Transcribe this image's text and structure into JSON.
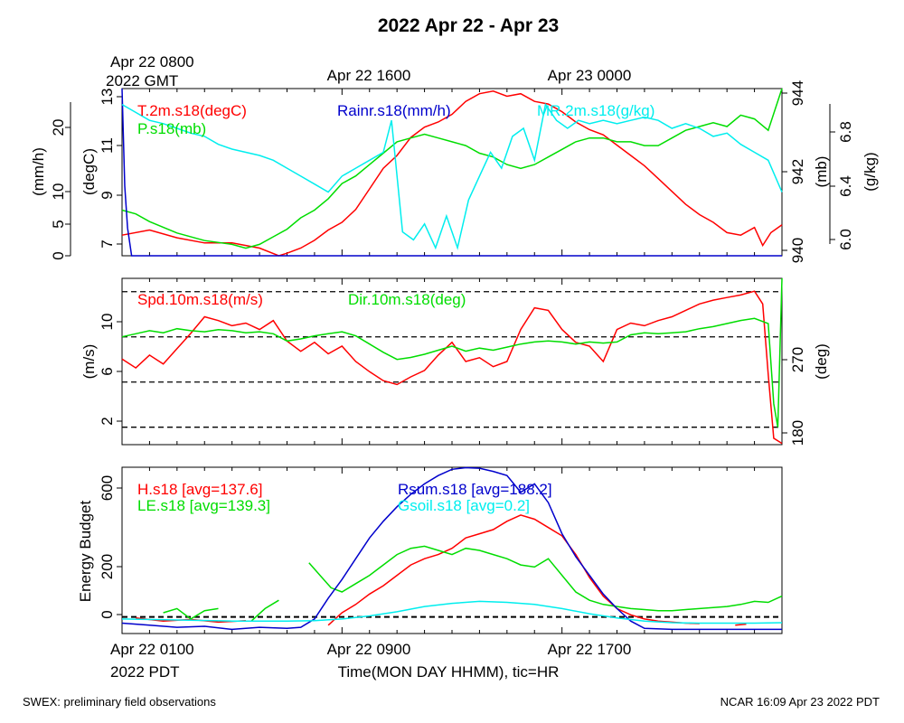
{
  "title": "2022 Apr 22 - Apr 23",
  "top_axis": {
    "first_label_line1": "Apr 22 0800",
    "first_label_line2": "2022 GMT",
    "labels": [
      "Apr 22 1600",
      "Apr 23 0000"
    ]
  },
  "bottom_axis": {
    "first_label_line1": "Apr 22 0100",
    "first_label_line2": "2022 PDT",
    "labels": [
      "Apr 22 0900",
      "Apr 22 1700"
    ],
    "xlabel": "Time(MON DAY HHMM), tic=HR"
  },
  "footer": {
    "left": "SWEX: preliminary field observations",
    "right": "NCAR 16:09 Apr 23 2022 PDT"
  },
  "colors": {
    "red": "#ff0000",
    "green": "#00dd00",
    "blue": "#0000cc",
    "cyan": "#00eeee"
  },
  "chart_data": [
    {
      "type": "line",
      "panel": "top",
      "x_unit": "hours after Apr 22 0100 PDT",
      "xlim": [
        0,
        24
      ],
      "axes": {
        "rain": {
          "label": "(mm/h)",
          "ticks": [
            "0",
            "5",
            "10",
            "20"
          ],
          "ylim": [
            0,
            24
          ]
        },
        "temp": {
          "label": "(degC)",
          "ticks": [
            "7",
            "9",
            "11",
            "13"
          ],
          "ylim": [
            6.6,
            13.1
          ]
        },
        "pres": {
          "label": "(mb)",
          "ticks": [
            "940",
            "942",
            "944"
          ],
          "ylim": [
            939.9,
            944.3
          ]
        },
        "mr": {
          "label": "(g/kg)",
          "ticks": [
            "6.0",
            "6.4",
            "6.8"
          ],
          "ylim": [
            5.95,
            7.0
          ]
        }
      },
      "series": [
        {
          "name": "T.2m.s18(degC)",
          "color": "#ff0000",
          "axis": "temp",
          "x": [
            0,
            1,
            2,
            3,
            4,
            5,
            5.7,
            6,
            6.5,
            7,
            7.5,
            8,
            8.5,
            9,
            9.5,
            10,
            10.5,
            11,
            11.5,
            12,
            12.5,
            13,
            13.5,
            14,
            14.5,
            15,
            15.5,
            16,
            16.5,
            17,
            17.5,
            18,
            18.5,
            19,
            19.5,
            20,
            20.5,
            21,
            21.5,
            22,
            22.5,
            23,
            23.3,
            23.6,
            24
          ],
          "y": [
            7.4,
            7.6,
            7.3,
            7.1,
            7.1,
            6.9,
            6.6,
            6.7,
            6.9,
            7.2,
            7.6,
            7.9,
            8.4,
            9.2,
            10,
            10.5,
            11.2,
            11.6,
            11.8,
            12.1,
            12.6,
            12.9,
            13.0,
            12.8,
            12.9,
            12.6,
            12.5,
            12.2,
            11.8,
            11.5,
            11.3,
            10.9,
            10.5,
            10.1,
            9.6,
            9.1,
            8.6,
            8.2,
            7.9,
            7.5,
            7.4,
            7.7,
            7.0,
            7.5,
            7.8
          ]
        },
        {
          "name": "P.s18(mb)",
          "color": "#00dd00",
          "axis": "pres",
          "x": [
            0,
            0.5,
            1,
            2,
            3,
            4,
            4.5,
            5,
            5.5,
            6,
            6.5,
            7,
            7.5,
            8,
            8.5,
            9,
            9.5,
            10,
            10.5,
            11,
            11.5,
            12,
            12.5,
            13,
            13.5,
            14,
            14.5,
            15,
            15.5,
            16,
            16.5,
            17,
            17.5,
            18,
            18.5,
            19,
            19.5,
            20,
            20.5,
            21,
            21.5,
            22,
            22.5,
            23,
            23.5,
            24
          ],
          "y": [
            941.1,
            941.0,
            940.8,
            940.5,
            940.3,
            940.2,
            940.1,
            940.2,
            940.4,
            940.6,
            940.9,
            941.1,
            941.4,
            941.8,
            942.0,
            942.3,
            942.6,
            942.9,
            943.0,
            943.1,
            943.0,
            942.9,
            942.8,
            942.6,
            942.5,
            942.3,
            942.2,
            942.3,
            942.5,
            942.7,
            942.9,
            943.0,
            943.0,
            942.9,
            942.9,
            942.8,
            942.8,
            943.0,
            943.2,
            943.3,
            943.4,
            943.3,
            943.6,
            943.5,
            943.2,
            944.3
          ]
        },
        {
          "name": "Rainr.s18(mm/h)",
          "color": "#0000cc",
          "axis": "rain",
          "x": [
            0,
            0.1,
            0.2,
            0.35,
            1,
            24
          ],
          "y": [
            24,
            10,
            4,
            0,
            0,
            0
          ]
        },
        {
          "name": "MR.2m.s18(g/kg)",
          "color": "#00eeee",
          "axis": "mr",
          "x": [
            0,
            0.5,
            1,
            1.5,
            2,
            2.5,
            3,
            3.5,
            4,
            4.5,
            5,
            5.5,
            6,
            6.5,
            7,
            7.5,
            8,
            8.5,
            9,
            9.5,
            9.8,
            10.2,
            10.6,
            11,
            11.4,
            11.8,
            12.2,
            12.6,
            13,
            13.4,
            13.8,
            14.2,
            14.6,
            15,
            15.4,
            15.8,
            16.2,
            16.6,
            17,
            17.5,
            18,
            18.5,
            19,
            19.5,
            20,
            20.5,
            21,
            21.5,
            22,
            22.5,
            23,
            23.5,
            24
          ],
          "y": [
            6.9,
            6.85,
            6.8,
            6.78,
            6.75,
            6.72,
            6.7,
            6.65,
            6.62,
            6.6,
            6.58,
            6.55,
            6.5,
            6.45,
            6.4,
            6.35,
            6.45,
            6.5,
            6.55,
            6.6,
            6.8,
            6.1,
            6.05,
            6.15,
            6.0,
            6.2,
            6.0,
            6.3,
            6.45,
            6.6,
            6.5,
            6.7,
            6.75,
            6.55,
            6.9,
            6.8,
            6.75,
            6.8,
            6.78,
            6.8,
            6.78,
            6.8,
            6.82,
            6.8,
            6.75,
            6.78,
            6.75,
            6.7,
            6.72,
            6.65,
            6.6,
            6.55,
            6.35
          ]
        }
      ]
    },
    {
      "type": "line",
      "panel": "middle",
      "x_unit": "hours after Apr 22 0100 PDT",
      "xlim": [
        0,
        24
      ],
      "axes": {
        "spd": {
          "label": "(m/s)",
          "ticks": [
            "2",
            "6",
            "10"
          ],
          "ylim": [
            0.5,
            13.5
          ]
        },
        "dir": {
          "label": "(deg)",
          "ticks": [
            "180",
            "270"
          ],
          "ylim": [
            170,
            332
          ]
        }
      },
      "reference_lines_dir_deg": [
        187,
        231,
        275,
        319
      ],
      "series": [
        {
          "name": "Spd.10m.s18(m/s)",
          "color": "#ff0000",
          "axis": "spd",
          "x": [
            0,
            0.5,
            1,
            1.5,
            2,
            2.5,
            3,
            3.5,
            4,
            4.5,
            5,
            5.5,
            6,
            6.5,
            7,
            7.5,
            8,
            8.5,
            9,
            9.5,
            10,
            10.5,
            11,
            11.5,
            12,
            12.5,
            13,
            13.5,
            14,
            14.5,
            15,
            15.5,
            16,
            16.5,
            17,
            17.5,
            18,
            18.5,
            19,
            19.5,
            20,
            20.5,
            21,
            21.5,
            22,
            22.5,
            23,
            23.3,
            23.5,
            23.7,
            24
          ],
          "y": [
            7.2,
            6.5,
            7.5,
            6.8,
            8.0,
            9.2,
            10.5,
            10.2,
            9.8,
            10.0,
            9.5,
            10.2,
            8.6,
            7.8,
            8.5,
            7.6,
            8.2,
            7.0,
            6.2,
            5.5,
            5.2,
            5.8,
            6.3,
            7.5,
            8.5,
            7.0,
            7.3,
            6.6,
            7.0,
            9.5,
            11.2,
            11.0,
            9.5,
            8.5,
            8.2,
            7.0,
            9.5,
            10.0,
            9.8,
            10.2,
            10.5,
            11.0,
            11.5,
            11.8,
            12.0,
            12.2,
            12.5,
            11.5,
            6.0,
            1.0,
            0.6
          ]
        },
        {
          "name": "Dir.10m.s18(deg)",
          "color": "#00dd00",
          "axis": "dir",
          "x": [
            0,
            0.5,
            1,
            1.5,
            2,
            2.5,
            3,
            3.5,
            4,
            4.5,
            5,
            5.5,
            6,
            6.5,
            7,
            7.5,
            8,
            8.5,
            9,
            9.5,
            10,
            10.5,
            11,
            11.5,
            12,
            12.5,
            13,
            13.5,
            14,
            14.5,
            15,
            15.5,
            16,
            16.5,
            17,
            17.5,
            18,
            18.5,
            19,
            19.5,
            20,
            20.5,
            21,
            21.5,
            22,
            22.5,
            23,
            23.5,
            23.7,
            23.85,
            24
          ],
          "y": [
            275,
            278,
            281,
            279,
            283,
            281,
            280,
            282,
            281,
            279,
            280,
            278,
            271,
            273,
            276,
            278,
            280,
            276,
            268,
            260,
            253,
            255,
            258,
            262,
            266,
            261,
            264,
            262,
            265,
            268,
            270,
            271,
            270,
            268,
            270,
            269,
            270,
            277,
            279,
            278,
            279,
            280,
            283,
            285,
            288,
            291,
            293,
            288,
            210,
            187,
            332
          ]
        }
      ]
    },
    {
      "type": "line",
      "panel": "bottom",
      "x_unit": "hours after Apr 22 0100 PDT",
      "xlim": [
        0,
        24
      ],
      "axes": {
        "energy": {
          "label": "Energy Budget",
          "ticks": [
            "0",
            "200",
            "600"
          ],
          "ylim": [
            -80,
            720
          ]
        }
      },
      "series": [
        {
          "name": "H.s18 [avg=137.6]",
          "color": "#ff0000",
          "axis": "energy",
          "segments": [
            {
              "x": [
                0.5,
                1.5,
                2.5,
                3.5,
                4.5
              ],
              "y": [
                -5,
                -20,
                -12,
                -25,
                -18
              ]
            },
            {
              "x": [
                7.5,
                8,
                8.5,
                9,
                9.5,
                10,
                10.5,
                11,
                11.5,
                12,
                12.5,
                13,
                13.5,
                14,
                14.5,
                15,
                15.5,
                16,
                16.5,
                17,
                17.5,
                18,
                18.5,
                19,
                19.5,
                20,
                20.5,
                21
              ],
              "y": [
                -40,
                20,
                60,
                110,
                150,
                200,
                250,
                280,
                300,
                330,
                380,
                400,
                420,
                460,
                490,
                470,
                430,
                390,
                300,
                190,
                100,
                40,
                10,
                -10,
                -20,
                -25,
                -30,
                -32
              ]
            },
            {
              "x": [
                22.3,
                22.7
              ],
              "y": [
                -40,
                -35
              ]
            }
          ]
        },
        {
          "name": "LE.s18 [avg=139.3]",
          "color": "#00dd00",
          "axis": "energy",
          "segments": [
            {
              "x": [
                1.5,
                2,
                2.5,
                3,
                3.5
              ],
              "y": [
                20,
                40,
                -10,
                30,
                40
              ]
            },
            {
              "x": [
                4.7,
                5.2,
                5.7
              ],
              "y": [
                -20,
                40,
                80
              ]
            },
            {
              "x": [
                6.8,
                7.2,
                7.6,
                8,
                8.5,
                9,
                9.5,
                10,
                10.5,
                11,
                11.5,
                12,
                12.5,
                13,
                13.5,
                14,
                14.5,
                15,
                15.5,
                16,
                16.5,
                17,
                17.5,
                18,
                18.5,
                19,
                19.5,
                20,
                20.5,
                21,
                21.5,
                22,
                22.5,
                23,
                23.5,
                24
              ],
              "y": [
                260,
                200,
                140,
                120,
                160,
                200,
                250,
                300,
                330,
                340,
                320,
                300,
                330,
                320,
                300,
                280,
                250,
                240,
                280,
                200,
                120,
                80,
                60,
                50,
                40,
                35,
                30,
                30,
                35,
                40,
                45,
                50,
                60,
                75,
                70,
                100
              ]
            }
          ]
        },
        {
          "name": "Rsum.s18 [avg=188.2]",
          "color": "#0000cc",
          "axis": "energy",
          "x": [
            0,
            1,
            2,
            3,
            4,
            5,
            6,
            6.5,
            7,
            7.5,
            8,
            8.5,
            9,
            9.5,
            10,
            10.5,
            11,
            11.5,
            12,
            12.5,
            13,
            13.5,
            14,
            14.5,
            15,
            15.5,
            16,
            16.5,
            17,
            17.5,
            18,
            18.5,
            19,
            20,
            21,
            22,
            23,
            24
          ],
          "y": [
            -30,
            -40,
            -50,
            -45,
            -60,
            -50,
            -55,
            -50,
            -10,
            90,
            180,
            280,
            380,
            460,
            530,
            590,
            640,
            680,
            710,
            718,
            715,
            700,
            680,
            600,
            640,
            550,
            400,
            290,
            200,
            110,
            40,
            -20,
            -55,
            -60,
            -60,
            -60,
            -60,
            -60
          ]
        },
        {
          "name": "Gsoil.s18 [avg=0.2]",
          "color": "#00eeee",
          "axis": "energy",
          "x": [
            0,
            2,
            4,
            6,
            7,
            8,
            9,
            10,
            11,
            12,
            13,
            14,
            15,
            16,
            17,
            18,
            19,
            20,
            21,
            22,
            23,
            24
          ],
          "y": [
            -10,
            -15,
            -20,
            -20,
            -18,
            -10,
            5,
            25,
            50,
            65,
            75,
            70,
            60,
            40,
            15,
            -5,
            -20,
            -28,
            -30,
            -30,
            -30,
            -28
          ]
        }
      ]
    }
  ]
}
